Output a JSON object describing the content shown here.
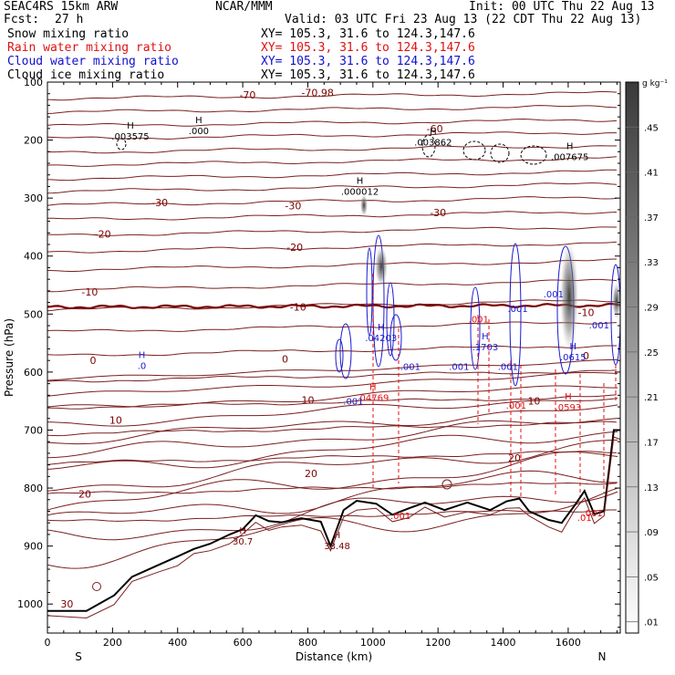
{
  "header": {
    "model": "SEAC4RS 15km ARW",
    "center": "NCAR/MMM",
    "init": "Init: 00 UTC Thu 22 Aug 13",
    "fcst_label": "Fcst:",
    "fcst_value": "27 h",
    "valid": "Valid: 03 UTC Fri 23 Aug 13 (22 CDT Thu 22 Aug 13)"
  },
  "fields": [
    {
      "name": "Snow mixing ratio",
      "xy": "XY= 105.3, 31.6 to 124.3,147.6",
      "color": "#000000"
    },
    {
      "name": "Rain water mixing ratio",
      "xy": "XY= 105.3, 31.6 to 124.3,147.6",
      "color": "#e01010"
    },
    {
      "name": "Cloud water mixing ratio",
      "xy": "XY= 105.3, 31.6 to 124.3,147.6",
      "color": "#1010d0"
    },
    {
      "name": "Cloud ice mixing ratio",
      "xy": "XY= 105.3, 31.6 to 124.3,147.6",
      "color": "#000000"
    }
  ],
  "chart_data": {
    "type": "cross-section",
    "xlabel": "Distance (km)",
    "ylabel": "Pressure (hPa)",
    "xlim": [
      0,
      1760
    ],
    "ylim": [
      1050,
      100
    ],
    "x_ticks": [
      0,
      200,
      400,
      600,
      800,
      1000,
      1200,
      1400,
      1600
    ],
    "y_ticks": [
      100,
      200,
      300,
      400,
      500,
      600,
      700,
      800,
      900,
      1000
    ],
    "x_end_labels": {
      "left": "S",
      "right": "N"
    },
    "colorbar": {
      "unit": "g kg⁻¹",
      "ticks": [
        0.01,
        0.05,
        0.09,
        0.13,
        0.17,
        0.21,
        0.25,
        0.29,
        0.33,
        0.37,
        0.41,
        0.45
      ],
      "tick_labels": [
        ".01",
        ".05",
        ".09",
        ".13",
        ".17",
        ".21",
        ".25",
        ".29",
        ".33",
        ".37",
        ".41",
        ".45"
      ],
      "range": [
        0,
        0.49
      ]
    },
    "temperature_contours": [
      {
        "label": "-70",
        "x": 615,
        "p": 122
      },
      {
        "label": "-70.98",
        "x": 830,
        "p": 118
      },
      {
        "label": "-60",
        "x": 1190,
        "p": 180
      },
      {
        "label": "-30",
        "x": 345,
        "p": 308
      },
      {
        "label": "-30",
        "x": 755,
        "p": 313
      },
      {
        "label": "-30",
        "x": 1200,
        "p": 325
      },
      {
        "label": "-20",
        "x": 170,
        "p": 362
      },
      {
        "label": "-20",
        "x": 760,
        "p": 385
      },
      {
        "label": "-10",
        "x": 130,
        "p": 462
      },
      {
        "label": "-10",
        "x": 770,
        "p": 488
      },
      {
        "label": "-10",
        "x": 1655,
        "p": 497
      },
      {
        "label": "0",
        "x": 140,
        "p": 580
      },
      {
        "label": "0",
        "x": 730,
        "p": 577
      },
      {
        "label": "0",
        "x": 1655,
        "p": 572
      },
      {
        "label": "10",
        "x": 210,
        "p": 683
      },
      {
        "label": "10",
        "x": 800,
        "p": 648
      },
      {
        "label": "10",
        "x": 1495,
        "p": 650
      },
      {
        "label": "20",
        "x": 115,
        "p": 810
      },
      {
        "label": "20",
        "x": 810,
        "p": 775
      },
      {
        "label": "20",
        "x": 1435,
        "p": 748
      },
      {
        "label": "30",
        "x": 60,
        "p": 1000
      }
    ],
    "extrema_labels": [
      {
        "kind": "H",
        "value": ".003575",
        "x": 255,
        "p": 190,
        "color": "black"
      },
      {
        "kind": "H",
        "value": ".000",
        "x": 465,
        "p": 180,
        "color": "black"
      },
      {
        "kind": "H",
        "value": ".003862",
        "x": 1185,
        "p": 200,
        "color": "black"
      },
      {
        "kind": "H",
        "value": ".007675",
        "x": 1605,
        "p": 225,
        "color": "black"
      },
      {
        "kind": "H",
        "value": ".000012",
        "x": 960,
        "p": 285,
        "color": "black"
      },
      {
        "kind": "H",
        "value": ".0",
        "x": 290,
        "p": 585,
        "color": "blue"
      },
      {
        "kind": "H",
        "value": ".04203",
        "x": 1025,
        "p": 537,
        "color": "blue"
      },
      {
        "kind": "H",
        "value": ".1703",
        "x": 1345,
        "p": 553,
        "color": "blue"
      },
      {
        "kind": "H",
        "value": ".0615",
        "x": 1615,
        "p": 570,
        "color": "blue"
      },
      {
        "kind": "H",
        "value": ".04769",
        "x": 1000,
        "p": 640,
        "color": "red"
      },
      {
        "kind": "H",
        "value": ".0593",
        "x": 1600,
        "p": 657,
        "color": "red"
      },
      {
        "kind": "H",
        "value": "30.7",
        "x": 600,
        "p": 888,
        "color": "maroon"
      },
      {
        "kind": "H",
        "value": "33.48",
        "x": 890,
        "p": 896,
        "color": "maroon"
      }
    ],
    "cloud_water_labels": [
      {
        "value": ".001",
        "x": 1555,
        "p": 465
      },
      {
        "value": ".001",
        "x": 1445,
        "p": 490
      },
      {
        "value": ".001",
        "x": 1695,
        "p": 518
      },
      {
        "value": ".001",
        "x": 1115,
        "p": 590
      },
      {
        "value": ".001",
        "x": 1265,
        "p": 590
      },
      {
        "value": ".001",
        "x": 1415,
        "p": 590
      },
      {
        "value": ".001",
        "x": 940,
        "p": 650
      }
    ],
    "rain_water_labels": [
      {
        "value": ".001",
        "x": 1325,
        "p": 508
      },
      {
        "value": ".001",
        "x": 1440,
        "p": 657
      },
      {
        "value": ".001",
        "x": 1085,
        "p": 847
      },
      {
        "value": ".001",
        "x": 1675,
        "p": 842
      },
      {
        "value": ".01",
        "x": 1650,
        "p": 850
      }
    ],
    "terrain": [
      [
        0,
        1012
      ],
      [
        120,
        1012
      ],
      [
        205,
        985
      ],
      [
        260,
        953
      ],
      [
        340,
        933
      ],
      [
        400,
        918
      ],
      [
        450,
        905
      ],
      [
        500,
        896
      ],
      [
        560,
        880
      ],
      [
        600,
        871
      ],
      [
        640,
        847
      ],
      [
        680,
        857
      ],
      [
        720,
        859
      ],
      [
        780,
        852
      ],
      [
        840,
        858
      ],
      [
        870,
        900
      ],
      [
        910,
        838
      ],
      [
        950,
        822
      ],
      [
        1010,
        827
      ],
      [
        1060,
        846
      ],
      [
        1110,
        835
      ],
      [
        1160,
        825
      ],
      [
        1220,
        838
      ],
      [
        1290,
        825
      ],
      [
        1360,
        838
      ],
      [
        1410,
        823
      ],
      [
        1450,
        818
      ],
      [
        1480,
        840
      ],
      [
        1540,
        855
      ],
      [
        1580,
        860
      ],
      [
        1620,
        830
      ],
      [
        1650,
        805
      ],
      [
        1680,
        845
      ],
      [
        1710,
        840
      ],
      [
        1740,
        700
      ],
      [
        1760,
        700
      ]
    ]
  }
}
